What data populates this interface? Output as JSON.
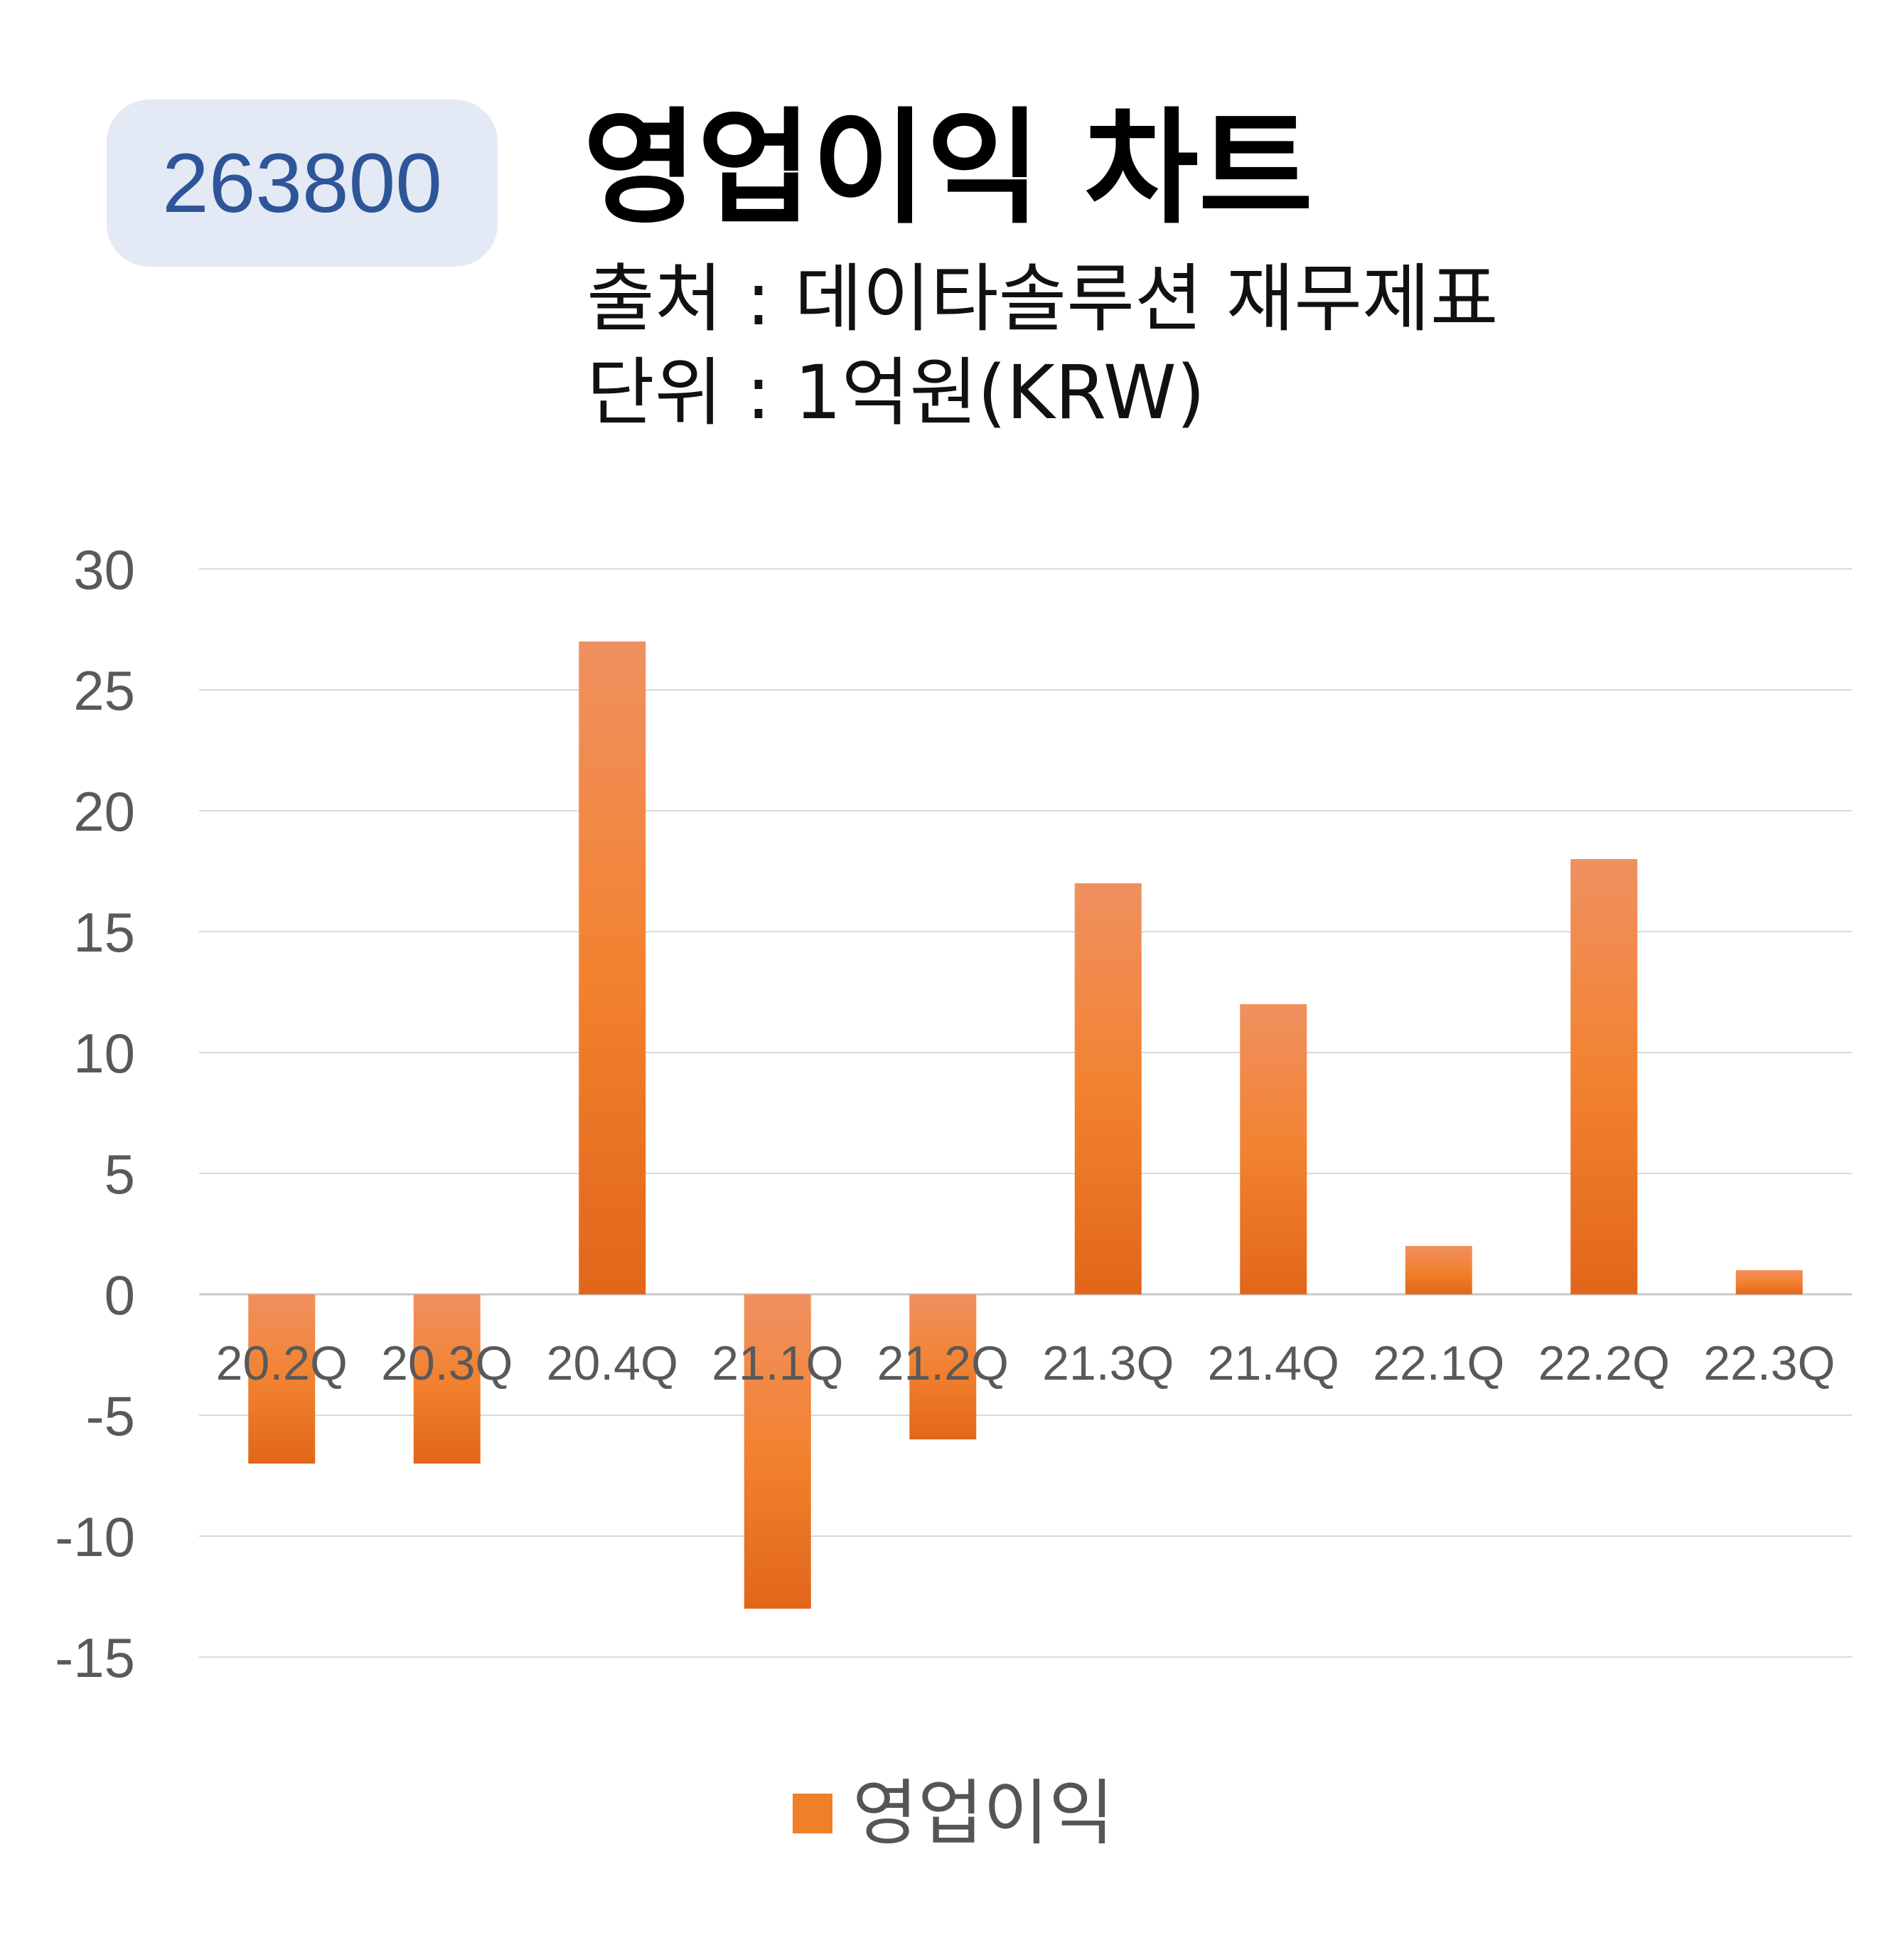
{
  "header": {
    "code": "263800",
    "title": "영업이익 차트",
    "source": "출처 : 데이타솔루션 재무제표",
    "unit": "단위 : 1억원(KRW)"
  },
  "chart_data": {
    "type": "bar",
    "categories": [
      "20.2Q",
      "20.3Q",
      "20.4Q",
      "21.1Q",
      "21.2Q",
      "21.3Q",
      "21.4Q",
      "22.1Q",
      "22.2Q",
      "22.3Q"
    ],
    "series": [
      {
        "name": "영업이익",
        "values": [
          -7,
          -7,
          27,
          -13,
          -6,
          17,
          12,
          2,
          18,
          1
        ]
      }
    ],
    "yticks": [
      30,
      25,
      20,
      15,
      10,
      5,
      0,
      -5,
      -10,
      -15
    ],
    "ylim": [
      -15,
      30
    ],
    "grid": true,
    "legend": "bottom",
    "colors": {
      "bar_top": "#f09060",
      "bar_mid": "#f28230",
      "bar_bottom": "#e2661a",
      "grid": "#d9d9d9",
      "tick": "#595959"
    }
  }
}
